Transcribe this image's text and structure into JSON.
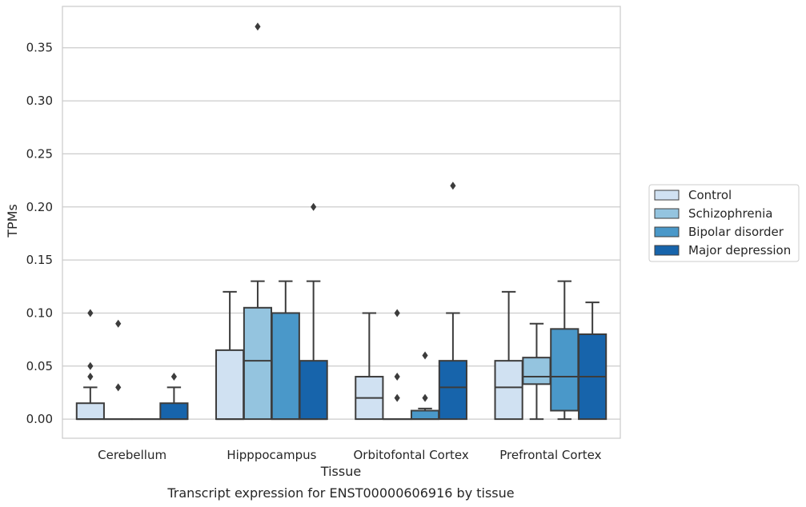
{
  "chart_data": {
    "type": "boxplot",
    "caption": "Transcript expression for ENST00000606916 by tissue",
    "xlabel": "Tissue",
    "ylabel": "TPMs",
    "ylim": [
      -0.018,
      0.389
    ],
    "yticks": [
      "0.00",
      "0.05",
      "0.10",
      "0.15",
      "0.20",
      "0.25",
      "0.30",
      "0.35"
    ],
    "grid": "horizontal",
    "legend_position": "right",
    "categories": [
      "Cerebellum",
      "Hipppocampus",
      "Orbitofontal Cortex",
      "Prefrontal Cortex"
    ],
    "series": [
      {
        "name": "Control",
        "color": "#d0e1f2",
        "boxes": [
          {
            "q1": 0.0,
            "median": 0.0,
            "q3": 0.015,
            "whislo": 0.0,
            "whishi": 0.03,
            "fliers": [
              0.04,
              0.05,
              0.1
            ]
          },
          {
            "q1": 0.0,
            "median": 0.0,
            "q3": 0.065,
            "whislo": 0.0,
            "whishi": 0.12,
            "fliers": []
          },
          {
            "q1": 0.0,
            "median": 0.02,
            "q3": 0.04,
            "whislo": 0.0,
            "whishi": 0.1,
            "fliers": []
          },
          {
            "q1": 0.0,
            "median": 0.03,
            "q3": 0.055,
            "whislo": 0.0,
            "whishi": 0.12,
            "fliers": []
          }
        ]
      },
      {
        "name": "Schizophrenia",
        "color": "#94c4df",
        "boxes": [
          {
            "q1": 0.0,
            "median": 0.0,
            "q3": 0.0,
            "whislo": 0.0,
            "whishi": 0.0,
            "fliers": [
              0.03,
              0.09
            ]
          },
          {
            "q1": 0.0,
            "median": 0.055,
            "q3": 0.105,
            "whislo": 0.0,
            "whishi": 0.13,
            "fliers": [
              0.37
            ]
          },
          {
            "q1": 0.0,
            "median": 0.0,
            "q3": 0.0,
            "whislo": 0.0,
            "whishi": 0.0,
            "fliers": [
              0.02,
              0.04,
              0.1
            ]
          },
          {
            "q1": 0.033,
            "median": 0.04,
            "q3": 0.058,
            "whislo": 0.0,
            "whishi": 0.09,
            "fliers": []
          }
        ]
      },
      {
        "name": "Bipolar disorder",
        "color": "#4a98c9",
        "boxes": [
          {
            "q1": 0.0,
            "median": 0.0,
            "q3": 0.0,
            "whislo": 0.0,
            "whishi": 0.0,
            "fliers": []
          },
          {
            "q1": 0.0,
            "median": 0.0,
            "q3": 0.1,
            "whislo": 0.0,
            "whishi": 0.13,
            "fliers": []
          },
          {
            "q1": 0.0,
            "median": 0.0,
            "q3": 0.008,
            "whislo": 0.0,
            "whishi": 0.01,
            "fliers": [
              0.02,
              0.06
            ]
          },
          {
            "q1": 0.008,
            "median": 0.04,
            "q3": 0.085,
            "whislo": 0.0,
            "whishi": 0.13,
            "fliers": []
          }
        ]
      },
      {
        "name": "Major depression",
        "color": "#1764ab",
        "boxes": [
          {
            "q1": 0.0,
            "median": 0.0,
            "q3": 0.015,
            "whislo": 0.0,
            "whishi": 0.03,
            "fliers": [
              0.04
            ]
          },
          {
            "q1": 0.0,
            "median": 0.0,
            "q3": 0.055,
            "whislo": 0.0,
            "whishi": 0.13,
            "fliers": [
              0.2
            ]
          },
          {
            "q1": 0.0,
            "median": 0.03,
            "q3": 0.055,
            "whislo": 0.0,
            "whishi": 0.1,
            "fliers": [
              0.22
            ]
          },
          {
            "q1": 0.0,
            "median": 0.04,
            "q3": 0.08,
            "whislo": 0.0,
            "whishi": 0.11,
            "fliers": []
          }
        ]
      }
    ]
  }
}
